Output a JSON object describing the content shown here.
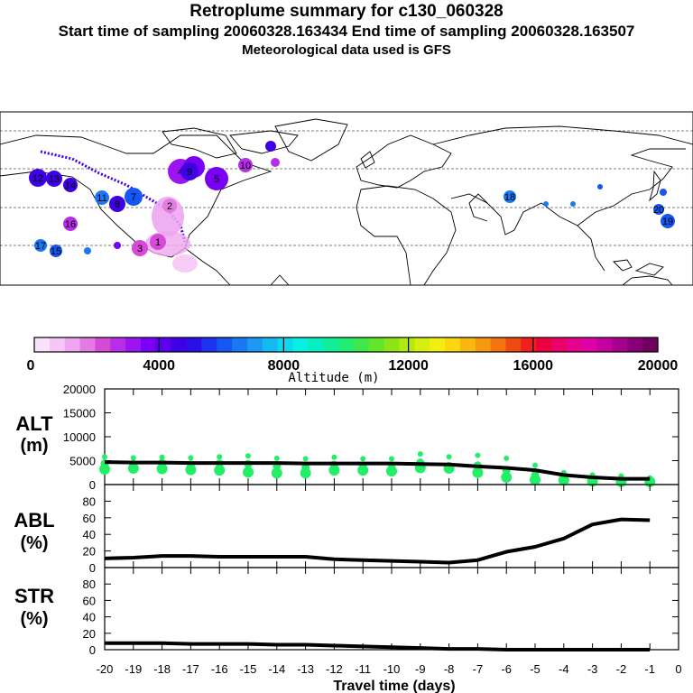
{
  "header": {
    "title": "Retroplume summary for c130_060328",
    "sampling_line": "Start time of sampling 20060328.163434     End time of sampling 20060328.163507",
    "met_line": "Meteorological data used is GFS"
  },
  "colorbar": {
    "label": "Altitude (m)",
    "ticks": [
      "0",
      "4000",
      "8000",
      "12000",
      "16000",
      "20000"
    ],
    "colors": [
      "#fbe2fb",
      "#f6c6f6",
      "#eea6ee",
      "#e27be2",
      "#d64ad6",
      "#b92de8",
      "#9a15f2",
      "#7a00f5",
      "#5a00ee",
      "#3e00e4",
      "#2a10e8",
      "#1f34ee",
      "#1656f2",
      "#1a78f5",
      "#1d99f5",
      "#13baf2",
      "#0ed8ee",
      "#08f0e6",
      "#05f0c0",
      "#10ee98",
      "#22ec72",
      "#3ee84a",
      "#62e62a",
      "#8ce616",
      "#b2ea10",
      "#d6ee10",
      "#f2ee10",
      "#fad810",
      "#f8b810",
      "#f69810",
      "#f47410",
      "#f04a10",
      "#ee2020",
      "#ec0040",
      "#ea0066",
      "#e6008c",
      "#de00a8",
      "#c4009e",
      "#a6008c",
      "#880078",
      "#700060"
    ]
  },
  "map": {
    "markers": [
      {
        "label": "1",
        "color": "#d64ad6"
      },
      {
        "label": "2",
        "color": "#e27be2"
      },
      {
        "label": "3",
        "color": "#d64ad6"
      },
      {
        "label": "4",
        "color": "#9a15f2"
      },
      {
        "label": "5",
        "color": "#7a00f5"
      },
      {
        "label": "6",
        "color": "#7a00f5"
      },
      {
        "label": "7",
        "color": "#1656f2"
      },
      {
        "label": "8",
        "color": "#3e00e4"
      },
      {
        "label": "9",
        "color": "#3e00e4"
      },
      {
        "label": "10",
        "color": "#b92de8"
      },
      {
        "label": "11",
        "color": "#1a78f5"
      },
      {
        "label": "12",
        "color": "#3e00e4"
      },
      {
        "label": "13",
        "color": "#3e00e4"
      },
      {
        "label": "14",
        "color": "#3e00e4"
      },
      {
        "label": "15",
        "color": "#1656f2"
      },
      {
        "label": "16",
        "color": "#b92de8"
      },
      {
        "label": "17",
        "color": "#1a78f5"
      },
      {
        "label": "18",
        "color": "#1a78f5"
      },
      {
        "label": "19",
        "color": "#1656f2"
      },
      {
        "label": "20",
        "color": "#1656f2"
      }
    ]
  },
  "panels": {
    "alt_label": "ALT",
    "alt_unit": "(m)",
    "abl_label": "ABL",
    "abl_unit": "(%)",
    "str_label": "STR",
    "str_unit": "(%)"
  },
  "chart_data": [
    {
      "type": "line",
      "name": "ALT",
      "ylabel": "ALT (m)",
      "ylim": [
        0,
        20000
      ],
      "yticks": [
        "20000",
        "15000",
        "10000",
        "5000",
        "0"
      ],
      "line_color": "#000000",
      "x": [
        -20,
        -19,
        -18,
        -17,
        -16,
        -15,
        -14,
        -13,
        -12,
        -11,
        -10,
        -9,
        -8,
        -7,
        -6,
        -5,
        -4,
        -3,
        -2,
        -1
      ],
      "values": [
        4700,
        4600,
        4600,
        4500,
        4500,
        4500,
        4500,
        4400,
        4400,
        4400,
        4400,
        4300,
        4200,
        3800,
        3500,
        3000,
        2000,
        1500,
        1200,
        1200
      ],
      "scatter_color": "#22ee66",
      "scatter": [
        {
          "x": -20,
          "y": [
            5800,
            4400,
            3200
          ]
        },
        {
          "x": -19,
          "y": [
            5600,
            4300,
            3400
          ]
        },
        {
          "x": -18,
          "y": [
            5700,
            4500,
            3300
          ]
        },
        {
          "x": -17,
          "y": [
            5600,
            4200,
            3100
          ]
        },
        {
          "x": -16,
          "y": [
            5800,
            4400,
            3000
          ]
        },
        {
          "x": -15,
          "y": [
            6000,
            4300,
            2600
          ]
        },
        {
          "x": -14,
          "y": [
            5500,
            3900,
            2400
          ]
        },
        {
          "x": -13,
          "y": [
            5400,
            3600,
            2400
          ]
        },
        {
          "x": -12,
          "y": [
            5700,
            4100,
            3000
          ]
        },
        {
          "x": -11,
          "y": [
            5400,
            3800,
            3000
          ]
        },
        {
          "x": -10,
          "y": [
            5400,
            3500,
            2800
          ]
        },
        {
          "x": -9,
          "y": [
            6400,
            4600,
            3500
          ]
        },
        {
          "x": -8,
          "y": [
            5800,
            3900,
            3400
          ]
        },
        {
          "x": -7,
          "y": [
            6100,
            4000,
            2500
          ]
        },
        {
          "x": -6,
          "y": [
            5500,
            3000,
            1500
          ]
        },
        {
          "x": -5,
          "y": [
            4000,
            2000,
            1000
          ]
        },
        {
          "x": -4,
          "y": [
            2500,
            1600,
            900
          ]
        },
        {
          "x": -3,
          "y": [
            2000,
            1200,
            700
          ]
        },
        {
          "x": -2,
          "y": [
            1800,
            900,
            600
          ]
        },
        {
          "x": -1,
          "y": [
            1400,
            900,
            600
          ]
        }
      ]
    },
    {
      "type": "line",
      "name": "ABL",
      "ylabel": "ABL (%)",
      "ylim": [
        0,
        100
      ],
      "yticks": [
        "80",
        "60",
        "40",
        "20",
        "0"
      ],
      "x": [
        -20,
        -19,
        -18,
        -17,
        -16,
        -15,
        -14,
        -13,
        -12,
        -11,
        -10,
        -9,
        -8,
        -7,
        -6,
        -5,
        -4,
        -3,
        -2,
        -1
      ],
      "values": [
        11,
        12,
        14,
        14,
        13,
        13,
        13,
        13,
        10,
        9,
        8,
        7,
        6,
        9,
        19,
        25,
        35,
        52,
        58,
        57
      ]
    },
    {
      "type": "line",
      "name": "STR",
      "ylabel": "STR (%)",
      "xlabel": "Travel time (days)",
      "ylim": [
        0,
        100
      ],
      "yticks": [
        "80",
        "60",
        "40",
        "20",
        "0"
      ],
      "xticks": [
        "-20",
        "-19",
        "-18",
        "-17",
        "-16",
        "-15",
        "-14",
        "-13",
        "-12",
        "-11",
        "-10",
        "-9",
        "-8",
        "-7",
        "-6",
        "-5",
        "-4",
        "-3",
        "-2",
        "-1",
        "0"
      ],
      "x": [
        -20,
        -19,
        -18,
        -17,
        -16,
        -15,
        -14,
        -13,
        -12,
        -11,
        -10,
        -9,
        -8,
        -7,
        -6,
        -5,
        -4,
        -3,
        -2,
        -1
      ],
      "values": [
        8,
        8,
        8,
        7,
        7,
        7,
        6,
        6,
        5,
        4,
        3,
        2,
        1,
        1,
        0,
        0,
        0,
        0,
        0,
        0
      ]
    }
  ]
}
